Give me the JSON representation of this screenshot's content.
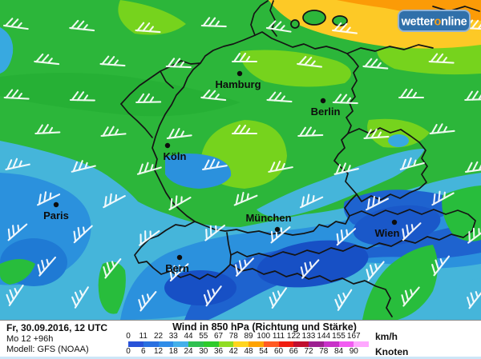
{
  "brand": {
    "prefix": "wetter",
    "accent_letter": "o",
    "suffix": "nline",
    "bg_color": "#3070aa",
    "accent_color": "#f6a01c"
  },
  "cities": [
    {
      "name": "Hamburg"
    },
    {
      "name": "Berlin"
    },
    {
      "name": "Köln"
    },
    {
      "name": "Paris"
    },
    {
      "name": "München"
    },
    {
      "name": "Wien"
    },
    {
      "name": "Bern"
    }
  ],
  "legend": {
    "date_line": "Fr, 30.09.2016, 12 UTC",
    "run_line": "Mo 12 +96h",
    "model_line": "Modell: GFS (NOAA)",
    "title": "Wind in 850 hPa (Richtung und Stärke)",
    "unit_top": "km/h",
    "unit_bottom": "Knoten",
    "ticks_kmh": [
      "0",
      "11",
      "22",
      "33",
      "44",
      "55",
      "67",
      "78",
      "89",
      "100",
      "111",
      "122",
      "133",
      "144",
      "155",
      "167"
    ],
    "ticks_knots": [
      "0",
      "6",
      "12",
      "18",
      "24",
      "30",
      "36",
      "42",
      "48",
      "54",
      "60",
      "66",
      "72",
      "78",
      "84",
      "90"
    ],
    "bar_colors": [
      "#2953d8",
      "#2a70e0",
      "#2f8ce8",
      "#45b0ea",
      "#2fc050",
      "#2ecb2b",
      "#90dc22",
      "#ffd51e",
      "#ffa300",
      "#ff5a22",
      "#f01d10",
      "#c00f2e",
      "#9c2090",
      "#c832c8",
      "#f25cf2",
      "#ffa8ff"
    ]
  },
  "palette": {
    "green_medium": "#2cb63a",
    "green_light": "#76d31d",
    "yellow": "#fdc926",
    "orange": "#fb9b07",
    "cyan": "#45b5da",
    "blue_medium": "#2b91dd",
    "blue_deep": "#1e63cf",
    "blue_darkest": "#1750c5"
  }
}
